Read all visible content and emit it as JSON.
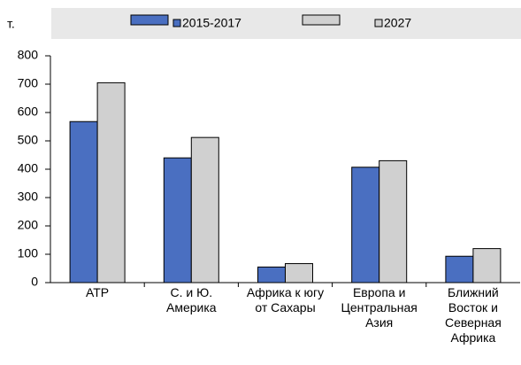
{
  "chart_data": {
    "type": "bar",
    "y_label": "т.",
    "categories": [
      "АТР",
      "С. и Ю.\nАмерика",
      "Африка к югу\nот Сахары",
      "Европа и\nЦентральная\nАзия",
      "Ближний\nВосток и\nСеверная\nАфрика"
    ],
    "series": [
      {
        "name": "2015-2017",
        "color": "#4a6fc1",
        "values": [
          568,
          440,
          55,
          407,
          93
        ]
      },
      {
        "name": "2027",
        "color": "#d0d0d0",
        "values": [
          705,
          512,
          67,
          430,
          120
        ]
      }
    ],
    "ylim": [
      0,
      800
    ],
    "yticks": [
      0,
      100,
      200,
      300,
      400,
      500,
      600,
      700,
      800
    ],
    "legend": "top"
  }
}
